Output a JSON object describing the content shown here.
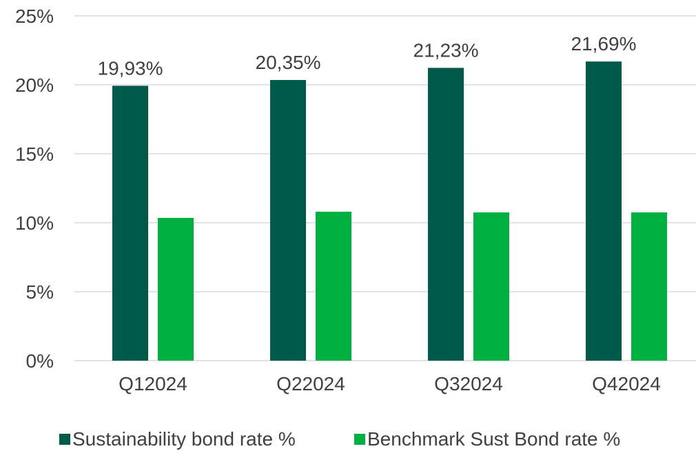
{
  "chart_data": {
    "type": "bar",
    "categories": [
      "Q12024",
      "Q22024",
      "Q32024",
      "Q42024"
    ],
    "series": [
      {
        "name": "Sustainability bond rate %",
        "values": [
          19.93,
          20.35,
          21.23,
          21.69
        ],
        "labels": [
          "19,93%",
          "20,35%",
          "21,23%",
          "21,69%"
        ],
        "color": "#005a4a"
      },
      {
        "name": "Benchmark Sust Bond rate %",
        "values": [
          10.35,
          10.8,
          10.75,
          10.75
        ],
        "color": "#00b040"
      }
    ],
    "ylim": [
      0,
      25
    ],
    "yticks": [
      "0%",
      "5%",
      "10%",
      "15%",
      "20%",
      "25%"
    ],
    "ytick_values": [
      0,
      5,
      10,
      15,
      20,
      25
    ],
    "grid": true,
    "legend_position": "bottom",
    "gridline_color": "#d9d9d9"
  }
}
